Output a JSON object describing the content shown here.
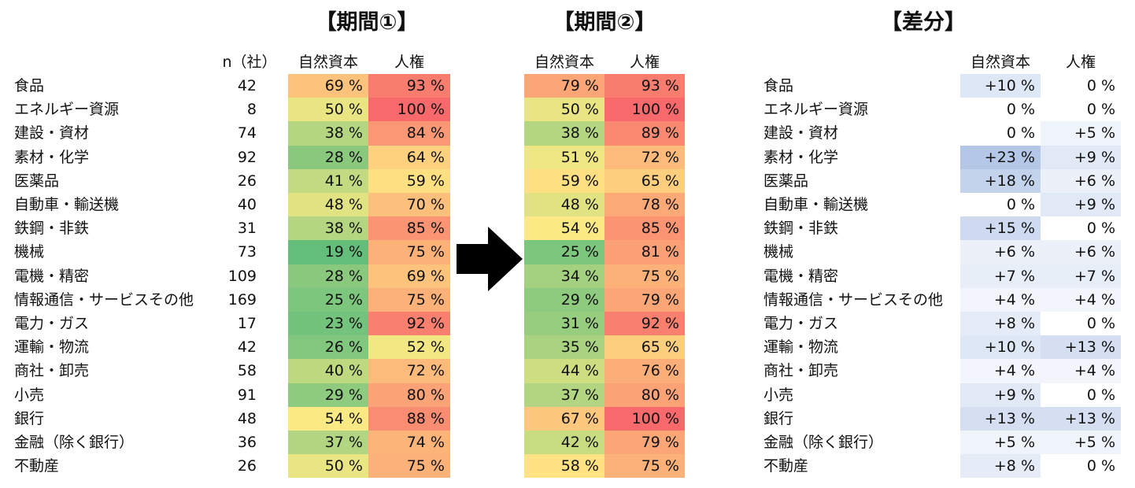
{
  "titles": {
    "period1": "【期間①】",
    "period2": "【期間②】",
    "diff": "【差分】"
  },
  "headers": {
    "n": "n（社）",
    "natural": "自然資本",
    "human": "人権"
  },
  "chart_data": {
    "type": "table",
    "columns": [
      "n（社）",
      "期間① 自然資本",
      "期間① 人権",
      "期間② 自然資本",
      "期間② 人権",
      "差分 自然資本",
      "差分 人権"
    ],
    "rows": [
      {
        "sector": "食品",
        "n": "42",
        "p1_nat": "69 %",
        "p1_hum": "93 %",
        "p2_nat": "79 %",
        "p2_hum": "93 %",
        "d_nat": "+10 %",
        "d_hum": "0 %",
        "v": [
          69,
          93,
          79,
          93,
          10,
          0
        ]
      },
      {
        "sector": "エネルギー資源",
        "n": "8",
        "p1_nat": "50 %",
        "p1_hum": "100 %",
        "p2_nat": "50 %",
        "p2_hum": "100 %",
        "d_nat": "0 %",
        "d_hum": "0 %",
        "v": [
          50,
          100,
          50,
          100,
          0,
          0
        ]
      },
      {
        "sector": "建設・資材",
        "n": "74",
        "p1_nat": "38 %",
        "p1_hum": "84 %",
        "p2_nat": "38 %",
        "p2_hum": "89 %",
        "d_nat": "0 %",
        "d_hum": "+5 %",
        "v": [
          38,
          84,
          38,
          89,
          0,
          5
        ]
      },
      {
        "sector": "素材・化学",
        "n": "92",
        "p1_nat": "28 %",
        "p1_hum": "64 %",
        "p2_nat": "51 %",
        "p2_hum": "72 %",
        "d_nat": "+23 %",
        "d_hum": "+9 %",
        "v": [
          28,
          64,
          51,
          72,
          23,
          9
        ]
      },
      {
        "sector": "医薬品",
        "n": "26",
        "p1_nat": "41 %",
        "p1_hum": "59 %",
        "p2_nat": "59 %",
        "p2_hum": "65 %",
        "d_nat": "+18 %",
        "d_hum": "+6 %",
        "v": [
          41,
          59,
          59,
          65,
          18,
          6
        ]
      },
      {
        "sector": "自動車・輸送機",
        "n": "40",
        "p1_nat": "48 %",
        "p1_hum": "70 %",
        "p2_nat": "48 %",
        "p2_hum": "78 %",
        "d_nat": "0 %",
        "d_hum": "+9 %",
        "v": [
          48,
          70,
          48,
          78,
          0,
          9
        ]
      },
      {
        "sector": "鉄鋼・非鉄",
        "n": "31",
        "p1_nat": "38 %",
        "p1_hum": "85 %",
        "p2_nat": "54 %",
        "p2_hum": "85 %",
        "d_nat": "+15 %",
        "d_hum": "0 %",
        "v": [
          38,
          85,
          54,
          85,
          15,
          0
        ]
      },
      {
        "sector": "機械",
        "n": "73",
        "p1_nat": "19 %",
        "p1_hum": "75 %",
        "p2_nat": "25 %",
        "p2_hum": "81 %",
        "d_nat": "+6 %",
        "d_hum": "+6 %",
        "v": [
          19,
          75,
          25,
          81,
          6,
          6
        ]
      },
      {
        "sector": "電機・精密",
        "n": "109",
        "p1_nat": "28 %",
        "p1_hum": "69 %",
        "p2_nat": "34 %",
        "p2_hum": "75 %",
        "d_nat": "+7 %",
        "d_hum": "+7 %",
        "v": [
          28,
          69,
          34,
          75,
          7,
          7
        ]
      },
      {
        "sector": "情報通信・サービスその他",
        "n": "169",
        "p1_nat": "25 %",
        "p1_hum": "75 %",
        "p2_nat": "29 %",
        "p2_hum": "79 %",
        "d_nat": "+4 %",
        "d_hum": "+4 %",
        "v": [
          25,
          75,
          29,
          79,
          4,
          4
        ]
      },
      {
        "sector": "電力・ガス",
        "n": "17",
        "p1_nat": "23 %",
        "p1_hum": "92 %",
        "p2_nat": "31 %",
        "p2_hum": "92 %",
        "d_nat": "+8 %",
        "d_hum": "0 %",
        "v": [
          23,
          92,
          31,
          92,
          8,
          0
        ]
      },
      {
        "sector": "運輸・物流",
        "n": "42",
        "p1_nat": "26 %",
        "p1_hum": "52 %",
        "p2_nat": "35 %",
        "p2_hum": "65 %",
        "d_nat": "+10 %",
        "d_hum": "+13 %",
        "v": [
          26,
          52,
          35,
          65,
          10,
          13
        ]
      },
      {
        "sector": "商社・卸売",
        "n": "58",
        "p1_nat": "40 %",
        "p1_hum": "72 %",
        "p2_nat": "44 %",
        "p2_hum": "76 %",
        "d_nat": "+4 %",
        "d_hum": "+4 %",
        "v": [
          40,
          72,
          44,
          76,
          4,
          4
        ]
      },
      {
        "sector": "小売",
        "n": "91",
        "p1_nat": "29 %",
        "p1_hum": "80 %",
        "p2_nat": "37 %",
        "p2_hum": "80 %",
        "d_nat": "+9 %",
        "d_hum": "0 %",
        "v": [
          29,
          80,
          37,
          80,
          9,
          0
        ]
      },
      {
        "sector": "銀行",
        "n": "48",
        "p1_nat": "54 %",
        "p1_hum": "88 %",
        "p2_nat": "67 %",
        "p2_hum": "100 %",
        "d_nat": "+13 %",
        "d_hum": "+13 %",
        "v": [
          54,
          88,
          67,
          100,
          13,
          13
        ]
      },
      {
        "sector": "金融（除く銀行）",
        "n": "36",
        "p1_nat": "37 %",
        "p1_hum": "74 %",
        "p2_nat": "42 %",
        "p2_hum": "79 %",
        "d_nat": "+5 %",
        "d_hum": "+5 %",
        "v": [
          37,
          74,
          42,
          79,
          5,
          5
        ]
      },
      {
        "sector": "不動産",
        "n": "26",
        "p1_nat": "50 %",
        "p1_hum": "75 %",
        "p2_nat": "58 %",
        "p2_hum": "75 %",
        "d_nat": "+8 %",
        "d_hum": "0 %",
        "v": [
          50,
          75,
          58,
          75,
          8,
          0
        ]
      }
    ]
  },
  "colors": {
    "low": "#63be7b",
    "mid": "#ffeb84",
    "high": "#f8696b",
    "diff_max": "#b4c7e7",
    "diff_min": "#ffffff"
  }
}
